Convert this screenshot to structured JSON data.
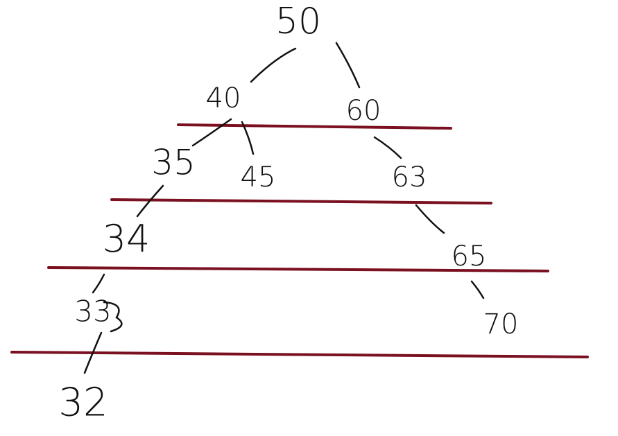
{
  "colors": {
    "ink": "#111111",
    "level_line": "#7a1020",
    "background": "#ffffff"
  },
  "tree": {
    "nodes": [
      {
        "id": "n50",
        "label": "50"
      },
      {
        "id": "n40",
        "label": "40"
      },
      {
        "id": "n60",
        "label": "60"
      },
      {
        "id": "n35",
        "label": "35"
      },
      {
        "id": "n45",
        "label": "45"
      },
      {
        "id": "n63",
        "label": "63"
      },
      {
        "id": "n34",
        "label": "34"
      },
      {
        "id": "n65",
        "label": "65"
      },
      {
        "id": "n33",
        "label": "33"
      },
      {
        "id": "n70",
        "label": "70"
      },
      {
        "id": "n32",
        "label": "32"
      }
    ],
    "edges": [
      {
        "from": "n50",
        "to": "n40"
      },
      {
        "from": "n50",
        "to": "n60"
      },
      {
        "from": "n40",
        "to": "n35"
      },
      {
        "from": "n40",
        "to": "n45"
      },
      {
        "from": "n60",
        "to": "n63"
      },
      {
        "from": "n35",
        "to": "n34"
      },
      {
        "from": "n63",
        "to": "n65"
      },
      {
        "from": "n34",
        "to": "n33"
      },
      {
        "from": "n65",
        "to": "n70"
      },
      {
        "from": "n33",
        "to": "n32"
      }
    ]
  }
}
